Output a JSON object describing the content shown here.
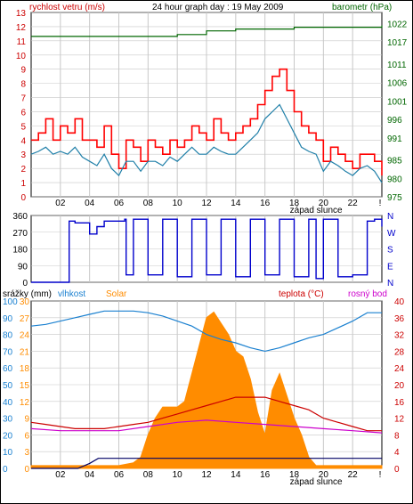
{
  "header": {
    "left_label": "rychlost vetru (m/s)",
    "title": "24 hour graph day : 19 May 2009",
    "right_label": "barometr (hPa)"
  },
  "colors": {
    "wind": "#cc0000",
    "wind_gust": "#ff0000",
    "wind_avg": "#1f7fa8",
    "barometer": "#006600",
    "direction": "#0000cc",
    "humidity": "#1a80d0",
    "solar": "#ff8c00",
    "temperature": "#cc0000",
    "dewpoint": "#cc00cc",
    "rain": "#000066",
    "grid": "#c8c8c8"
  },
  "chart_data": [
    {
      "type": "line",
      "name": "wind-and-pressure",
      "x_ticks": [
        "02",
        "04",
        "06",
        "08",
        "10",
        "12",
        "14",
        "16",
        "18",
        "20",
        "22"
      ],
      "annotation": "západ slunce",
      "y_left": {
        "label": "rychlost vetru (m/s)",
        "ylim": [
          0,
          13
        ],
        "ticks": [
          "0",
          "1",
          "2",
          "3",
          "4",
          "5",
          "6",
          "7",
          "8",
          "9",
          "10",
          "11",
          "12",
          "13"
        ]
      },
      "y_right": {
        "label": "barometr (hPa)",
        "ylim": [
          975,
          1025
        ],
        "ticks": [
          "975",
          "980",
          "985",
          "991",
          "996",
          "1001",
          "1006",
          "1011",
          "1017",
          "1022"
        ]
      },
      "series": [
        {
          "role": "wind_gust",
          "x": [
            0,
            0.5,
            1,
            1.5,
            2,
            2.5,
            3,
            3.5,
            4,
            4.5,
            5,
            5.5,
            6,
            6.5,
            7,
            7.5,
            8,
            8.5,
            9,
            9.5,
            10,
            10.5,
            11,
            11.5,
            12,
            12.5,
            13,
            13.5,
            14,
            14.5,
            15,
            15.5,
            16,
            16.5,
            17,
            17.5,
            18,
            18.5,
            19,
            19.5,
            20,
            20.5,
            21,
            21.5,
            22,
            22.5,
            23,
            23.5,
            24
          ],
          "values": [
            4,
            4.5,
            5.5,
            4,
            5,
            4.5,
            5.5,
            4,
            4,
            3.5,
            5,
            3,
            2,
            4,
            3.5,
            2.5,
            4,
            3.5,
            3,
            4,
            3.5,
            4,
            5,
            4.5,
            4,
            5.5,
            4.5,
            4,
            4.5,
            5,
            5.5,
            6.5,
            7.5,
            8.5,
            9,
            7.5,
            6,
            5,
            4.5,
            4,
            2.5,
            3.5,
            3,
            2.5,
            2,
            3,
            3,
            2.5,
            1.5
          ]
        },
        {
          "role": "wind_avg",
          "x": [
            0,
            0.5,
            1,
            1.5,
            2,
            2.5,
            3,
            3.5,
            4,
            4.5,
            5,
            5.5,
            6,
            6.5,
            7,
            7.5,
            8,
            8.5,
            9,
            9.5,
            10,
            10.5,
            11,
            11.5,
            12,
            12.5,
            13,
            13.5,
            14,
            14.5,
            15,
            15.5,
            16,
            16.5,
            17,
            17.5,
            18,
            18.5,
            19,
            19.5,
            20,
            20.5,
            21,
            21.5,
            22,
            22.5,
            23,
            23.5,
            24
          ],
          "values": [
            3,
            3.2,
            3.5,
            3,
            3.2,
            3,
            3.5,
            2.8,
            2.5,
            2.2,
            3,
            2,
            1.5,
            2.5,
            2.5,
            1.8,
            2.5,
            2.5,
            2.2,
            2.8,
            2.5,
            3,
            3.5,
            3,
            3,
            3.5,
            3.2,
            3,
            3,
            3.5,
            4,
            4.5,
            5.5,
            6,
            6.5,
            5.5,
            4.5,
            3.5,
            3.2,
            3,
            1.8,
            2.5,
            2.2,
            1.8,
            1.5,
            2,
            2.2,
            1.8,
            1
          ]
        },
        {
          "role": "barometer",
          "x": [
            0,
            2,
            4,
            6,
            8,
            10,
            12,
            14,
            16,
            18,
            20,
            22,
            24
          ],
          "values": [
            1018.5,
            1018.5,
            1018.5,
            1018.5,
            1018.5,
            1019,
            1020,
            1020.5,
            1020.5,
            1021,
            1021,
            1021,
            1021.5
          ]
        }
      ]
    },
    {
      "type": "line",
      "name": "wind-direction",
      "y_left": {
        "ylim": [
          0,
          360
        ],
        "ticks": [
          "0",
          "90",
          "180",
          "270",
          "360"
        ]
      },
      "y_right_ticks": [
        "N",
        "E",
        "S",
        "W",
        "N"
      ],
      "series": [
        {
          "role": "direction",
          "x": [
            0,
            2.5,
            2.6,
            3,
            4,
            4.5,
            5,
            6,
            6.4,
            6.5,
            7,
            8,
            9,
            10,
            11,
            12,
            13,
            14,
            15,
            16,
            17,
            18,
            19,
            19.5,
            20,
            21,
            22,
            23,
            23.5,
            24
          ],
          "values": [
            0,
            0,
            330,
            320,
            260,
            300,
            330,
            330,
            340,
            40,
            340,
            40,
            340,
            30,
            340,
            40,
            340,
            30,
            340,
            40,
            340,
            30,
            340,
            20,
            340,
            30,
            40,
            330,
            340,
            300
          ]
        }
      ]
    },
    {
      "type": "area",
      "name": "rain-humidity-solar-temperature",
      "x_ticks": [
        "02",
        "04",
        "06",
        "08",
        "10",
        "12",
        "14",
        "16",
        "18",
        "20",
        "22"
      ],
      "annotation": "západ slunce",
      "legend": [
        "srážky (mm)",
        "vlhkost",
        "Solar",
        "teplota (°C)",
        "rosný bod"
      ],
      "y_left": {
        "ylim": [
          0,
          100
        ],
        "ticks": [
          "0",
          "10",
          "20",
          "30",
          "40",
          "50",
          "60",
          "70",
          "80",
          "90",
          "100"
        ]
      },
      "y_left2": {
        "ylim": [
          0,
          30
        ],
        "ticks": [
          "0",
          "3",
          "6",
          "9",
          "12",
          "15",
          "18",
          "21",
          "24",
          "27",
          "30"
        ]
      },
      "y_right": {
        "ylim": [
          0,
          40
        ],
        "ticks": [
          "0",
          "4",
          "8",
          "12",
          "16",
          "20",
          "24",
          "28",
          "32",
          "36",
          "40"
        ]
      },
      "series": [
        {
          "role": "humidity",
          "x": [
            0,
            1,
            2,
            3,
            4,
            5,
            6,
            7,
            8,
            9,
            10,
            11,
            12,
            13,
            14,
            15,
            16,
            17,
            18,
            19,
            20,
            21,
            22,
            23,
            24
          ],
          "values": [
            85,
            86,
            88,
            90,
            92,
            94,
            94,
            94,
            93,
            91,
            88,
            85,
            80,
            77,
            75,
            72,
            70,
            72,
            75,
            78,
            80,
            84,
            88,
            93,
            93
          ]
        },
        {
          "role": "solar",
          "x": [
            0,
            5,
            6,
            7,
            7.5,
            8,
            8.5,
            9,
            9.5,
            10,
            10.5,
            11,
            11.5,
            12,
            12.5,
            13,
            13.5,
            14,
            14.5,
            15,
            15.5,
            16,
            16.5,
            17,
            17.5,
            18,
            18.5,
            19,
            19.5,
            24
          ],
          "values": [
            0.5,
            0.5,
            0.5,
            1,
            2,
            6,
            9,
            11,
            11,
            11,
            12,
            17,
            22,
            27,
            28,
            26,
            24,
            21,
            20,
            16,
            10,
            6,
            14,
            17,
            13,
            9,
            6,
            2,
            0.5,
            0.5
          ]
        },
        {
          "role": "temperature",
          "x": [
            0,
            1,
            2,
            3,
            4,
            5,
            6,
            7,
            8,
            9,
            10,
            11,
            12,
            13,
            14,
            15,
            16,
            17,
            18,
            19,
            20,
            21,
            22,
            23,
            24
          ],
          "values": [
            11,
            10.5,
            10,
            9.5,
            9.5,
            9.5,
            10,
            10.5,
            11,
            12,
            13,
            14,
            15,
            16,
            17,
            17,
            17,
            16,
            15,
            14,
            12,
            11,
            10,
            9,
            9
          ]
        },
        {
          "role": "dewpoint",
          "x": [
            0,
            2,
            4,
            6,
            8,
            10,
            12,
            14,
            16,
            18,
            20,
            22,
            24
          ],
          "values": [
            9.5,
            9,
            9,
            9,
            10,
            11,
            11.5,
            11,
            10.5,
            10,
            9.5,
            9,
            8.5
          ]
        },
        {
          "role": "rain",
          "x": [
            0,
            3.2,
            4,
            4.6,
            4.8,
            24
          ],
          "values": [
            0,
            0,
            3,
            6,
            6,
            6
          ]
        }
      ]
    }
  ],
  "panel3": {
    "rain_label": "srážky (mm)",
    "humidity_label": "vlhkost",
    "solar_label": "Solar",
    "temp_label": "teplota (°C)",
    "dew_label": "rosný bod"
  }
}
